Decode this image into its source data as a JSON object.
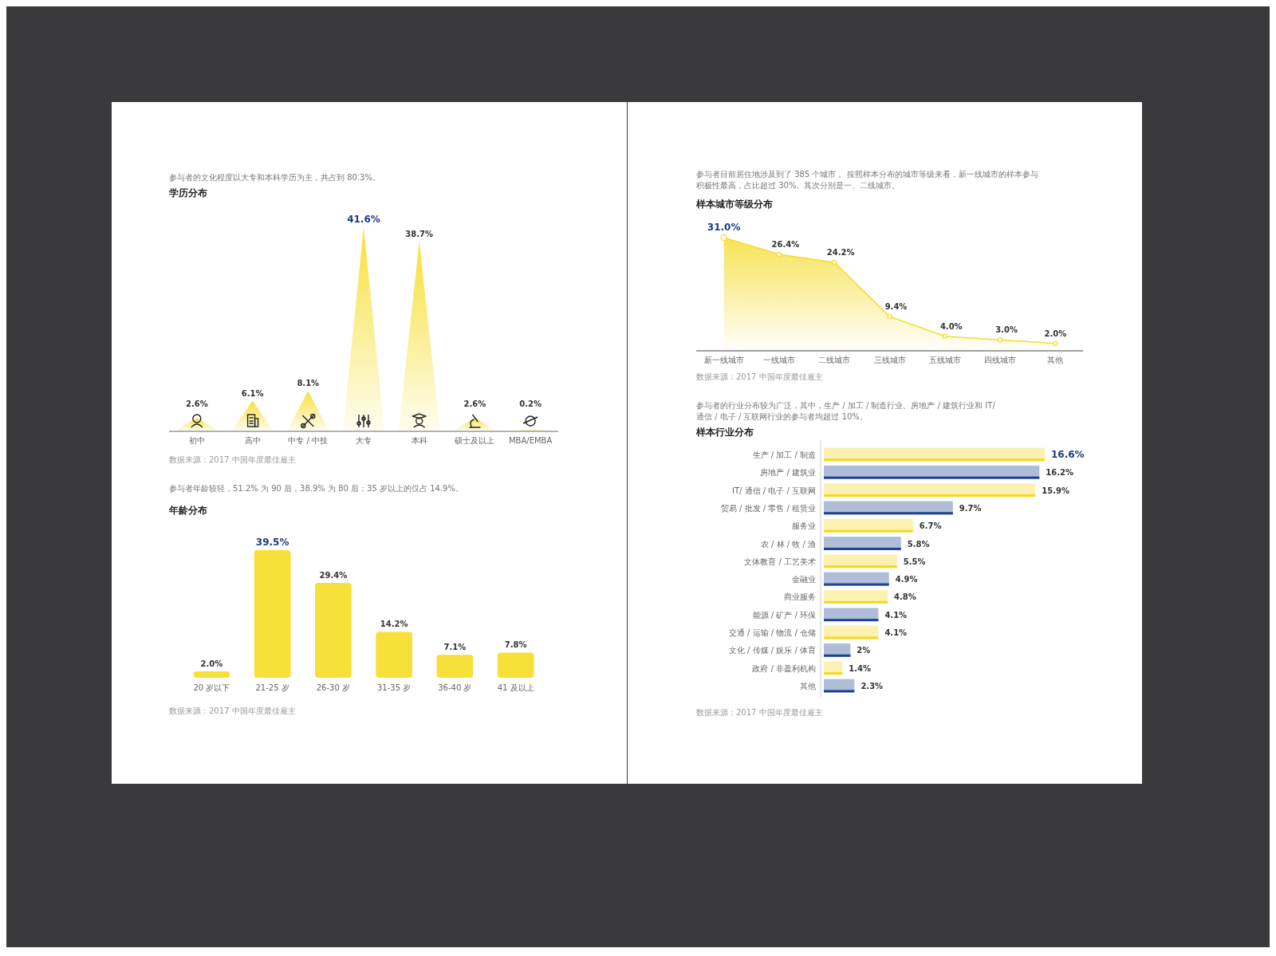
{
  "chart_data": [
    {
      "type": "bar",
      "subtitle": "参与者的文化程度以大专和本科学历为主，共占到 80.3%。",
      "title": "学历分布",
      "categories": [
        "初中",
        "高中",
        "中专 / 中技",
        "大专",
        "本科",
        "硕士及以上",
        "MBA/EMBA"
      ],
      "values": [
        2.6,
        6.1,
        8.1,
        41.6,
        38.7,
        2.6,
        0.2
      ],
      "value_labels": [
        "2.6%",
        "6.1%",
        "8.1%",
        "41.6%",
        "38.7%",
        "2.6%",
        "0.2%"
      ],
      "color": "#f7e03a",
      "annotations": [
        "数据来源：2017 中国年度最佳雇主"
      ]
    },
    {
      "type": "bar",
      "subtitle": "参与者年龄较轻，51.2% 为 90 后，38.9% 为 80 后；35 岁以上的仅占 14.9%。",
      "title": "年龄分布",
      "categories": [
        "20 岁以下",
        "21-25 岁",
        "26-30 岁",
        "31-35 岁",
        "36-40 岁",
        "41 及以上"
      ],
      "values": [
        2.0,
        39.5,
        29.4,
        14.2,
        7.1,
        7.8
      ],
      "value_labels": [
        "2.0%",
        "39.5%",
        "29.4%",
        "14.2%",
        "7.1%",
        "7.8%"
      ],
      "color": "#f7e03a",
      "annotations": [
        "数据来源：2017 中国年度最佳雇主"
      ]
    },
    {
      "type": "area",
      "subtitle": "参与者目前居住地涉及到了 385 个城市， 按照样本分布的城市等级来看，新一线城市的样本参与积极性最高，占比超过 30%。其次分别是一、二线城市。",
      "title": "样本城市等级分布",
      "categories": [
        "新一线城市",
        "一线城市",
        "二线城市",
        "三线城市",
        "五线城市",
        "四线城市",
        "其他"
      ],
      "values": [
        31.0,
        26.4,
        24.2,
        9.4,
        4.0,
        3.0,
        2.0
      ],
      "value_labels": [
        "31.0%",
        "26.4%",
        "24.2%",
        "9.4%",
        "4.0%",
        "3.0%",
        "2.0%"
      ],
      "color": "#f5dc2a",
      "marker": "circle",
      "annotations": [
        "数据来源：2017 中国年度最佳雇主"
      ]
    },
    {
      "type": "bar",
      "orientation": "horizontal",
      "subtitle": "参与者的行业分布较为广泛，其中，生产 / 加工 / 制造行业、房地产 / 建筑行业和 IT/ 通信 / 电子 / 互联网行业的参与者均超过 10%。",
      "title": "样本行业分布",
      "categories": [
        "生产 / 加工 / 制造",
        "房地产 / 建筑业",
        "IT/ 通信 / 电子 / 互联网",
        "贸易 / 批发 / 零售 / 租赁业",
        "服务业",
        "农 / 林 / 牧 / 渔",
        "文体教育 / 工艺美术",
        "金融业",
        "商业服务",
        "能源 / 矿产 / 环保",
        "交通 / 运输 / 物流 / 仓储",
        "文化 / 传媒 / 娱乐 / 体育",
        "政府 / 非盈利机构",
        "其他"
      ],
      "values": [
        16.6,
        16.2,
        15.9,
        9.7,
        6.7,
        5.8,
        5.5,
        4.9,
        4.8,
        4.1,
        4.1,
        2,
        1.4,
        2.3
      ],
      "value_labels": [
        "16.6%",
        "16.2%",
        "15.9%",
        "9.7%",
        "6.7%",
        "5.8%",
        "5.5%",
        "4.9%",
        "4.8%",
        "4.1%",
        "4.1%",
        "2%",
        "1.4%",
        "2.3%"
      ],
      "colors": [
        "#f5d81c",
        "#1d4291",
        "#f5d81c",
        "#1d4291",
        "#f5d81c",
        "#1d4291",
        "#f5d81c",
        "#1d4291",
        "#f5d81c",
        "#1d4291",
        "#f5d81c",
        "#1d4291",
        "#f5d81c",
        "#1d4291"
      ],
      "annotations": [
        "数据来源：2017 中国年度最佳雇主"
      ]
    }
  ]
}
